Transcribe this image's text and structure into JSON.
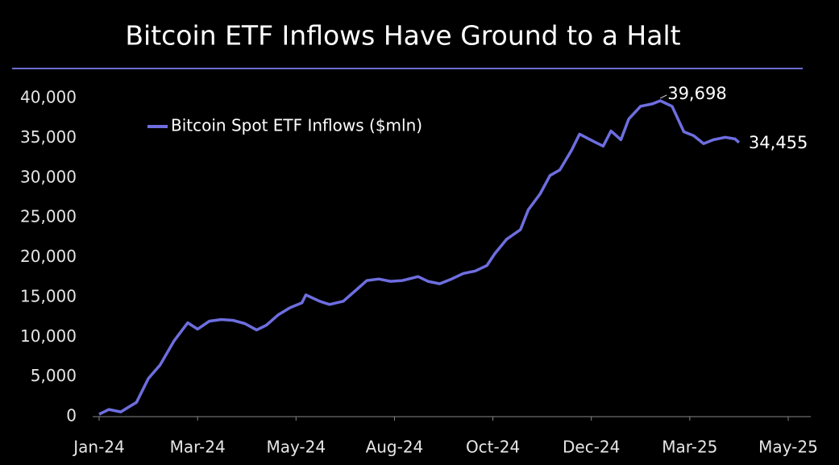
{
  "chart_data": {
    "type": "line",
    "title": "Bitcoin ETF Inflows Have Ground to a Halt",
    "x": [
      0,
      5,
      11,
      15,
      19,
      25,
      31,
      38,
      45,
      50,
      56,
      62,
      68,
      74,
      80,
      85,
      91,
      97,
      103,
      105,
      112,
      117,
      124,
      130,
      136,
      142,
      148,
      154,
      162,
      167,
      173,
      179,
      185,
      191,
      197,
      201,
      207,
      214,
      218,
      224,
      229,
      234,
      240,
      244,
      251,
      256,
      260,
      265,
      269,
      275,
      281,
      285,
      291,
      297,
      302,
      307,
      312,
      318,
      323,
      325
    ],
    "series": [
      {
        "name": "Bitcoin Spot ETF Inflows ($mln)",
        "color": "#6e6ee0",
        "values": [
          300,
          900,
          600,
          1200,
          1800,
          4800,
          6500,
          9500,
          11800,
          11000,
          12000,
          12200,
          12100,
          11700,
          10900,
          11500,
          12800,
          13700,
          14300,
          15300,
          14500,
          14100,
          14500,
          15800,
          17100,
          17300,
          17000,
          17100,
          17600,
          17000,
          16700,
          17300,
          18000,
          18300,
          19000,
          20500,
          22300,
          23500,
          26000,
          28000,
          30300,
          31000,
          33500,
          35500,
          34600,
          34000,
          35900,
          34800,
          37400,
          39000,
          39300,
          39698,
          39000,
          35800,
          35300,
          34300,
          34800,
          35100,
          34900,
          34455
        ],
        "value_labels": [
          null,
          null,
          null,
          null,
          null,
          null,
          null,
          null,
          null,
          null,
          null,
          null,
          null,
          null,
          null,
          null,
          null,
          null,
          null,
          null,
          null,
          null,
          null,
          null,
          null,
          null,
          null,
          null,
          null,
          null,
          null,
          null,
          null,
          null,
          null,
          null,
          null,
          null,
          null,
          null,
          null,
          null,
          null,
          null,
          null,
          null,
          null,
          null,
          null,
          null,
          null,
          "39,698",
          null,
          null,
          null,
          null,
          null,
          null,
          null,
          "34,455"
        ]
      }
    ],
    "xlim": [
      0,
      350
    ],
    "xticks": [
      {
        "value": 0,
        "label": "Jan-24"
      },
      {
        "value": 50,
        "label": "Mar-24"
      },
      {
        "value": 100,
        "label": "May-24"
      },
      {
        "value": 150,
        "label": "Aug-24"
      },
      {
        "value": 200,
        "label": "Oct-24"
      },
      {
        "value": 250,
        "label": "Dec-24"
      },
      {
        "value": 300,
        "label": "Mar-25"
      },
      {
        "value": 350,
        "label": "May-25"
      }
    ],
    "ylim": [
      0,
      40000
    ],
    "yticks": [
      0,
      {
        "value": 5000,
        "label": "5,000"
      },
      {
        "value": 10000,
        "label": "10,000"
      },
      {
        "value": 15000,
        "label": "15,000"
      },
      {
        "value": 20000,
        "label": "20,000"
      },
      {
        "value": 25000,
        "label": "25,000"
      },
      {
        "value": 30000,
        "label": "30,000"
      },
      {
        "value": 35000,
        "label": "35,000"
      },
      {
        "value": 40000,
        "label": "40,000"
      }
    ],
    "grid": false,
    "legend": "upper left"
  }
}
